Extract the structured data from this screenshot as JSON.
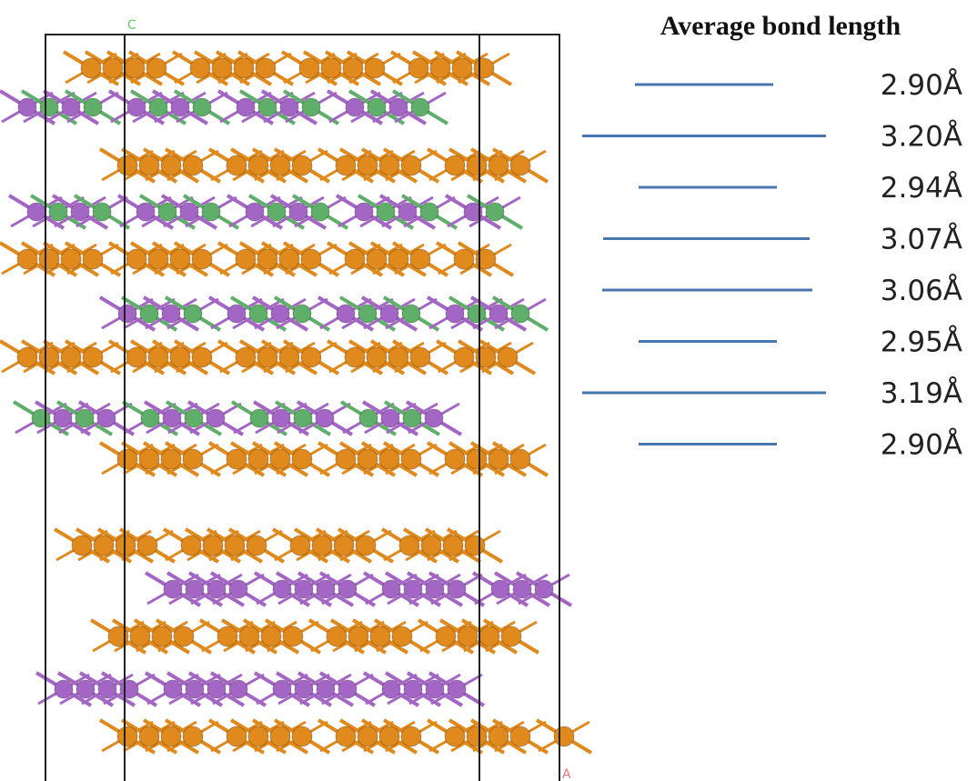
{
  "figure": {
    "title": "Average bond length",
    "axis_labels": {
      "c": "C",
      "a": "A"
    },
    "bond_lengths": [
      "2.90Å",
      "3.20Å",
      "2.94Å",
      "3.07Å",
      "3.06Å",
      "2.95Å",
      "3.19Å",
      "2.90Å"
    ]
  }
}
